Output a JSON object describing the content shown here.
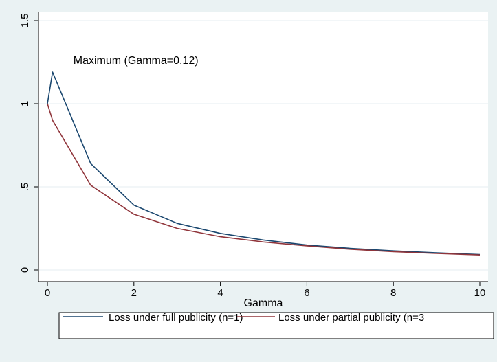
{
  "chart_data": {
    "type": "line",
    "xlabel": "Gamma",
    "ylabel": "",
    "xlim": [
      0,
      10
    ],
    "ylim": [
      0,
      1.5
    ],
    "x_ticks": [
      0,
      2,
      4,
      6,
      8,
      10
    ],
    "x_tick_labels": [
      "0",
      "2",
      "4",
      "6",
      "8",
      "10"
    ],
    "y_ticks": [
      0,
      0.5,
      1,
      1.5
    ],
    "y_tick_labels": [
      "0",
      ".5",
      "1",
      "1.5"
    ],
    "grid": "horizontal",
    "legend_position": "bottom",
    "annotations": [
      {
        "text": "Maximum (Gamma=0.12)",
        "x": 0.6,
        "y": 1.24
      }
    ],
    "series": [
      {
        "name": "Loss under full publicity (n=1)",
        "color": "#1a476f",
        "x": [
          0,
          0.12,
          1,
          2,
          3,
          4,
          5,
          6,
          7,
          8,
          9,
          10
        ],
        "y": [
          1,
          1.19,
          0.64,
          0.39,
          0.28,
          0.22,
          0.18,
          0.15,
          0.13,
          0.115,
          0.103,
          0.093
        ]
      },
      {
        "name": "Loss under partial publicity (n=3",
        "color": "#90353b",
        "x": [
          0,
          0.12,
          1,
          2,
          3,
          4,
          5,
          6,
          7,
          8,
          9,
          10
        ],
        "y": [
          1,
          0.9,
          0.51,
          0.335,
          0.25,
          0.2,
          0.168,
          0.145,
          0.125,
          0.11,
          0.099,
          0.09
        ]
      }
    ]
  }
}
